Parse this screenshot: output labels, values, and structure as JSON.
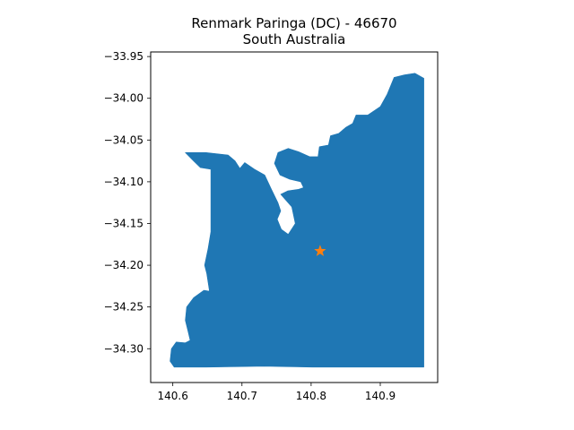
{
  "chart_data": {
    "type": "map",
    "title": "Renmark Paringa (DC) - 46670",
    "subtitle": "South Australia",
    "xlabel": "",
    "ylabel": "",
    "xlim": [
      140.568,
      140.983
    ],
    "ylim": [
      -34.3405,
      -33.9445
    ],
    "x_ticks": [
      140.6,
      140.7,
      140.8,
      140.9
    ],
    "x_tick_labels": [
      "140.6",
      "140.7",
      "140.8",
      "140.9"
    ],
    "y_ticks": [
      -33.95,
      -34.0,
      -34.05,
      -34.1,
      -34.15,
      -34.2,
      -34.25,
      -34.3
    ],
    "y_tick_labels": [
      "−33.95",
      "−34.00",
      "−34.05",
      "−34.10",
      "−34.15",
      "−34.20",
      "−34.25",
      "−34.30"
    ],
    "grid": false,
    "region": {
      "fill_color": "#1f77b4",
      "boundary": [
        [
          140.618,
          -34.065
        ],
        [
          140.648,
          -34.065
        ],
        [
          140.68,
          -34.068
        ],
        [
          140.69,
          -34.075
        ],
        [
          140.697,
          -34.084
        ],
        [
          140.704,
          -34.077
        ],
        [
          140.718,
          -34.085
        ],
        [
          140.733,
          -34.092
        ],
        [
          140.742,
          -34.108
        ],
        [
          140.752,
          -34.125
        ],
        [
          140.756,
          -34.135
        ],
        [
          140.751,
          -34.145
        ],
        [
          140.757,
          -34.157
        ],
        [
          140.767,
          -34.163
        ],
        [
          140.777,
          -34.15
        ],
        [
          140.772,
          -34.13
        ],
        [
          140.756,
          -34.115
        ],
        [
          140.766,
          -34.111
        ],
        [
          140.782,
          -34.109
        ],
        [
          140.789,
          -34.107
        ],
        [
          140.785,
          -34.1
        ],
        [
          140.769,
          -34.097
        ],
        [
          140.755,
          -34.092
        ],
        [
          140.747,
          -34.078
        ],
        [
          140.752,
          -34.065
        ],
        [
          140.767,
          -34.06
        ],
        [
          140.782,
          -34.064
        ],
        [
          140.798,
          -34.07
        ],
        [
          140.81,
          -34.07
        ],
        [
          140.812,
          -34.058
        ],
        [
          140.825,
          -34.056
        ],
        [
          140.828,
          -34.045
        ],
        [
          140.84,
          -34.042
        ],
        [
          140.85,
          -34.035
        ],
        [
          140.86,
          -34.03
        ],
        [
          140.865,
          -34.02
        ],
        [
          140.882,
          -34.02
        ],
        [
          140.9,
          -34.01
        ],
        [
          140.91,
          -33.995
        ],
        [
          140.92,
          -33.975
        ],
        [
          140.935,
          -33.972
        ],
        [
          140.95,
          -33.97
        ],
        [
          140.963,
          -33.976
        ],
        [
          140.963,
          -34.322
        ],
        [
          140.892,
          -34.322
        ],
        [
          140.802,
          -34.322
        ],
        [
          140.732,
          -34.321
        ],
        [
          140.648,
          -34.322
        ],
        [
          140.602,
          -34.322
        ],
        [
          140.596,
          -34.315
        ],
        [
          140.598,
          -34.3
        ],
        [
          140.605,
          -34.292
        ],
        [
          140.618,
          -34.293
        ],
        [
          140.625,
          -34.29
        ],
        [
          140.622,
          -34.279
        ],
        [
          140.618,
          -34.266
        ],
        [
          140.62,
          -34.25
        ],
        [
          140.63,
          -34.239
        ],
        [
          140.645,
          -34.23
        ],
        [
          140.653,
          -34.231
        ],
        [
          140.652,
          -34.226
        ],
        [
          140.649,
          -34.21
        ],
        [
          140.646,
          -34.2
        ],
        [
          140.651,
          -34.18
        ],
        [
          140.655,
          -34.16
        ],
        [
          140.655,
          -34.1
        ],
        [
          140.655,
          -34.085
        ],
        [
          140.64,
          -34.083
        ],
        [
          140.63,
          -34.075
        ]
      ]
    },
    "point": {
      "name": "centroid",
      "lon": 140.813,
      "lat": -34.183,
      "color": "#ff7f0e",
      "marker": "star"
    }
  }
}
